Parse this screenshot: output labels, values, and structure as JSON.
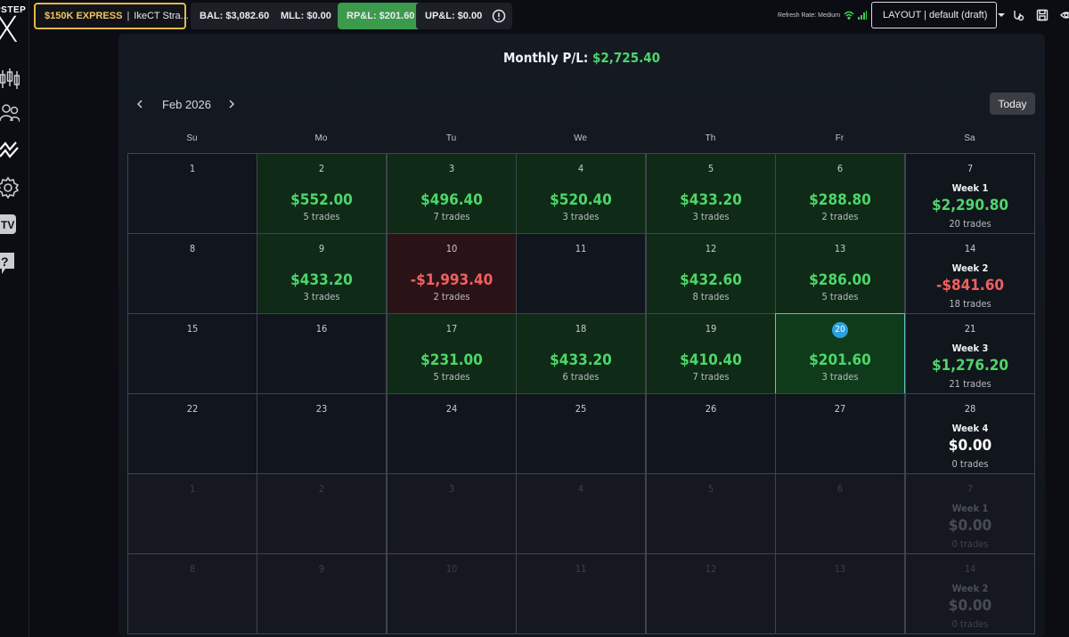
{
  "sidebar": {
    "logo_top": "PSTEP",
    "logo_letter": "X",
    "icons": [
      "candlestick-chart-icon",
      "users-icon",
      "analytics-icon",
      "settings-gear-icon",
      "tv-icon",
      "help-icon"
    ]
  },
  "topbar": {
    "account_name": "$150K EXPRESS",
    "account_separator": "|",
    "account_strategy": "IkeCT Stra...",
    "bal": "BAL: $3,082.60",
    "mll": "MLL: $0.00",
    "rpl": "RP&L: $201.60",
    "upl": "UP&L: $0.00",
    "refresh_rate": "Refresh Rate: Medium",
    "layout": "LAYOUT | default (draft)"
  },
  "calendar": {
    "monthly_label": "Monthly P/L:",
    "monthly_value": "$2,725.40",
    "month": "Feb 2026",
    "today_button": "Today",
    "days_of_week": [
      "Su",
      "Mo",
      "Tu",
      "We",
      "Th",
      "Fr",
      "Sa"
    ],
    "rows": [
      [
        {
          "day": "1"
        },
        {
          "day": "2",
          "amount": "$552.00",
          "trades": "5 trades",
          "status": "pos"
        },
        {
          "day": "3",
          "amount": "$496.40",
          "trades": "7 trades",
          "status": "pos"
        },
        {
          "day": "4",
          "amount": "$520.40",
          "trades": "3 trades",
          "status": "pos"
        },
        {
          "day": "5",
          "amount": "$433.20",
          "trades": "3 trades",
          "status": "pos"
        },
        {
          "day": "6",
          "amount": "$288.80",
          "trades": "2 trades",
          "status": "pos"
        },
        {
          "day": "7",
          "week": "Week 1",
          "amount": "$2,290.80",
          "trades": "20 trades",
          "status": "pos"
        }
      ],
      [
        {
          "day": "8"
        },
        {
          "day": "9",
          "amount": "$433.20",
          "trades": "3 trades",
          "status": "pos"
        },
        {
          "day": "10",
          "amount": "-$1,993.40",
          "trades": "2 trades",
          "status": "neg"
        },
        {
          "day": "11"
        },
        {
          "day": "12",
          "amount": "$432.60",
          "trades": "8 trades",
          "status": "pos"
        },
        {
          "day": "13",
          "amount": "$286.00",
          "trades": "5 trades",
          "status": "pos"
        },
        {
          "day": "14",
          "week": "Week 2",
          "amount": "-$841.60",
          "trades": "18 trades",
          "status": "neg"
        }
      ],
      [
        {
          "day": "15"
        },
        {
          "day": "16"
        },
        {
          "day": "17",
          "amount": "$231.00",
          "trades": "5 trades",
          "status": "pos"
        },
        {
          "day": "18",
          "amount": "$433.20",
          "trades": "6 trades",
          "status": "pos"
        },
        {
          "day": "19",
          "amount": "$410.40",
          "trades": "7 trades",
          "status": "pos"
        },
        {
          "day": "20",
          "amount": "$201.60",
          "trades": "3 trades",
          "status": "today"
        },
        {
          "day": "21",
          "week": "Week 3",
          "amount": "$1,276.20",
          "trades": "21 trades",
          "status": "pos"
        }
      ],
      [
        {
          "day": "22"
        },
        {
          "day": "23"
        },
        {
          "day": "24"
        },
        {
          "day": "25"
        },
        {
          "day": "26"
        },
        {
          "day": "27"
        },
        {
          "day": "28",
          "week": "Week 4",
          "amount": "$0.00",
          "trades": "0 trades",
          "status": "zero"
        }
      ],
      [
        {
          "day": "1",
          "faded": true
        },
        {
          "day": "2",
          "faded": true
        },
        {
          "day": "3",
          "faded": true
        },
        {
          "day": "4",
          "faded": true
        },
        {
          "day": "5",
          "faded": true
        },
        {
          "day": "6",
          "faded": true
        },
        {
          "day": "7",
          "week": "Week 1",
          "amount": "$0.00",
          "trades": "0 trades",
          "status": "zero",
          "faded": true
        }
      ],
      [
        {
          "day": "8",
          "faded": true
        },
        {
          "day": "9",
          "faded": true
        },
        {
          "day": "10",
          "faded": true
        },
        {
          "day": "11",
          "faded": true
        },
        {
          "day": "12",
          "faded": true
        },
        {
          "day": "13",
          "faded": true
        },
        {
          "day": "14",
          "week": "Week 2",
          "amount": "$0.00",
          "trades": "0 trades",
          "status": "zero",
          "faded": true
        }
      ]
    ]
  },
  "colors": {
    "profit": "#4dd66a",
    "loss": "#f06060",
    "account_accent": "#e6b54a",
    "today_badge": "#2aa0e0"
  }
}
